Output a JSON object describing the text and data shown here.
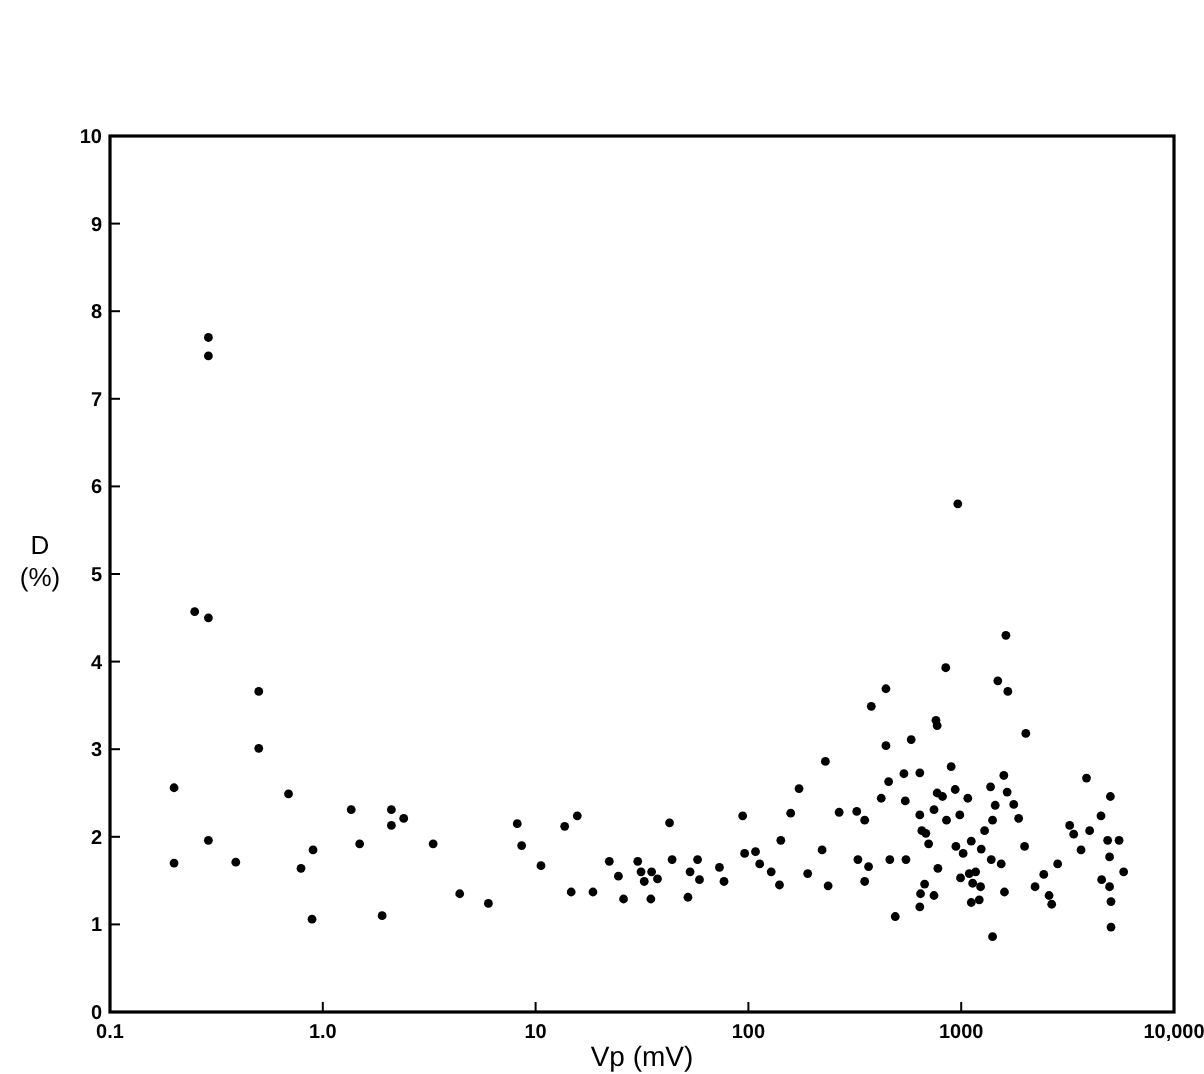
{
  "chart_data": {
    "type": "scatter",
    "xlabel": "Vp (mV)",
    "ylabel": "D (%)",
    "log": "x",
    "grid": false,
    "marker": "circle",
    "xlim": [
      0.1,
      10000
    ],
    "ylim": [
      0,
      10
    ],
    "xticks": [
      {
        "value": 0.1,
        "label": "0.1"
      },
      {
        "value": 1,
        "label": "1.0"
      },
      10,
      100,
      1000,
      {
        "value": 10000,
        "label": "10,000"
      }
    ],
    "yticks": [
      0,
      1,
      2,
      3,
      4,
      5,
      6,
      7,
      8,
      9,
      10
    ],
    "series": [
      {
        "color": "#000000",
        "x": [
          0.2,
          0.2,
          0.25,
          0.29,
          0.29,
          0.29,
          0.29,
          0.39,
          0.5,
          0.5,
          0.69,
          0.79,
          0.9,
          0.89,
          1.36,
          1.49,
          2.1,
          2.1,
          2.4,
          1.9,
          3.3,
          4.4,
          6.0,
          8.2,
          8.6,
          10.6,
          13.7,
          15.7,
          14.7,
          18.6,
          22.2,
          24.5,
          25.9,
          30.2,
          31.3,
          32.4,
          34.8,
          35.1,
          37.4,
          42.6,
          43.8,
          52,
          53.2,
          57.7,
          58.9,
          73.1,
          76.8,
          94,
          96,
          108,
          113,
          128,
          140,
          142,
          158,
          173,
          190,
          222,
          230,
          237,
          267,
          323,
          327,
          352,
          352,
          367,
          378,
          421,
          443,
          443,
          456,
          462,
          490,
          538,
          546,
          550,
          582,
          639,
          639,
          644,
          639,
          653,
          673,
          682,
          703,
          745,
          761,
          771,
          771,
          745,
          817,
          846,
          853,
          777,
          897,
          937,
          964,
          944,
          985,
          993,
          1021,
          1074,
          1091,
          1115,
          1132,
          1115,
          1169,
          1216,
          1233,
          1242,
          1288,
          1374,
          1404,
          1384,
          1404,
          1445,
          1486,
          1542,
          1586,
          1597,
          1622,
          1644,
          1656,
          1766,
          1862,
          1985,
          2012,
          2224,
          2443,
          2588,
          2662,
          2839,
          3234,
          3378,
          3658,
          3880,
          4013,
          4539,
          4570,
          5024,
          4877,
          4980,
          4980,
          5058,
          5058,
          5520,
          5800
        ],
        "values": [
          2.56,
          1.7,
          4.57,
          4.5,
          1.96,
          7.7,
          7.49,
          1.71,
          3.66,
          3.01,
          2.49,
          1.64,
          1.85,
          1.06,
          2.31,
          1.92,
          2.31,
          2.13,
          2.21,
          1.1,
          1.92,
          1.35,
          1.24,
          2.15,
          1.9,
          1.67,
          2.12,
          2.24,
          1.37,
          1.37,
          1.72,
          1.55,
          1.29,
          1.72,
          1.6,
          1.49,
          1.29,
          1.6,
          1.52,
          2.16,
          1.74,
          1.31,
          1.6,
          1.74,
          1.51,
          1.65,
          1.49,
          2.24,
          1.81,
          1.83,
          1.69,
          1.6,
          1.45,
          1.96,
          2.27,
          2.55,
          1.58,
          1.85,
          2.86,
          1.44,
          2.28,
          2.29,
          1.74,
          2.19,
          1.49,
          1.66,
          3.49,
          2.44,
          3.69,
          3.04,
          2.63,
          1.74,
          1.09,
          2.72,
          2.41,
          1.74,
          3.11,
          2.73,
          2.25,
          1.35,
          1.2,
          2.07,
          1.46,
          2.04,
          1.92,
          1.33,
          3.33,
          3.27,
          2.5,
          2.31,
          2.46,
          3.93,
          2.19,
          1.64,
          2.8,
          2.54,
          5.8,
          1.89,
          2.25,
          1.53,
          1.81,
          2.44,
          1.58,
          1.95,
          1.47,
          1.25,
          1.6,
          1.28,
          1.43,
          1.86,
          2.07,
          2.57,
          2.19,
          1.74,
          0.86,
          2.36,
          3.78,
          1.69,
          2.7,
          1.37,
          4.3,
          2.51,
          3.66,
          2.37,
          2.21,
          1.89,
          3.18,
          1.43,
          1.57,
          1.33,
          1.23,
          1.69,
          2.13,
          2.03,
          1.85,
          2.67,
          2.07,
          2.24,
          1.51,
          2.46,
          1.96,
          1.77,
          1.43,
          1.26,
          0.97,
          1.96,
          1.6
        ]
      }
    ]
  }
}
